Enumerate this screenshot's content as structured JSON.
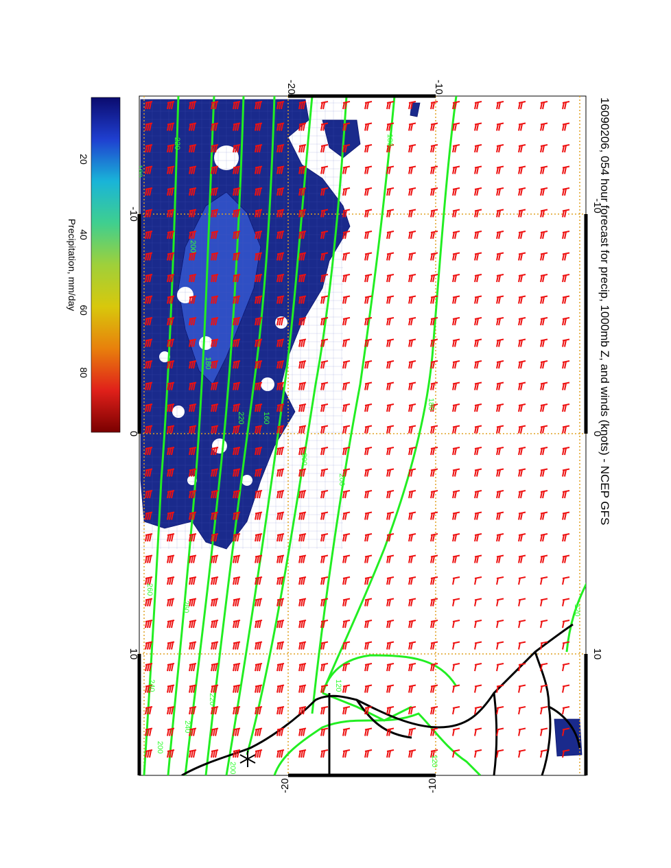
{
  "title": "16090206, 054 hour forecast for precip, 1000mb Z, and winds (knots) - NCEP GFS",
  "colors": {
    "precip": "#1a2a8c",
    "precip_heavy": "#2f4fc4",
    "contour": "#22ee22",
    "barb": "#ee1111",
    "coast": "#000000",
    "grid": "#e0a020",
    "frame": "#000000"
  },
  "colorbar": {
    "label": "Precipitation, mm/day",
    "ticks": [
      "20",
      "40",
      "60",
      "80"
    ],
    "stops": [
      "#0b0b6e",
      "#1f3fd0",
      "#19b4d8",
      "#3fcf8f",
      "#9fd03a",
      "#d8c80c",
      "#e8800c",
      "#e0201a",
      "#7a0000"
    ]
  },
  "axes": {
    "lon_ticks": [
      "-10",
      "0",
      "10"
    ],
    "lat_ticks": [
      "-20",
      "-10"
    ]
  },
  "contour_labels": [
    "180",
    "180",
    "200",
    "200",
    "220",
    "220",
    "200",
    "180",
    "160",
    "120",
    "120",
    "260",
    "240",
    "260",
    "240",
    "220",
    "200",
    "180",
    "120",
    "200"
  ]
}
